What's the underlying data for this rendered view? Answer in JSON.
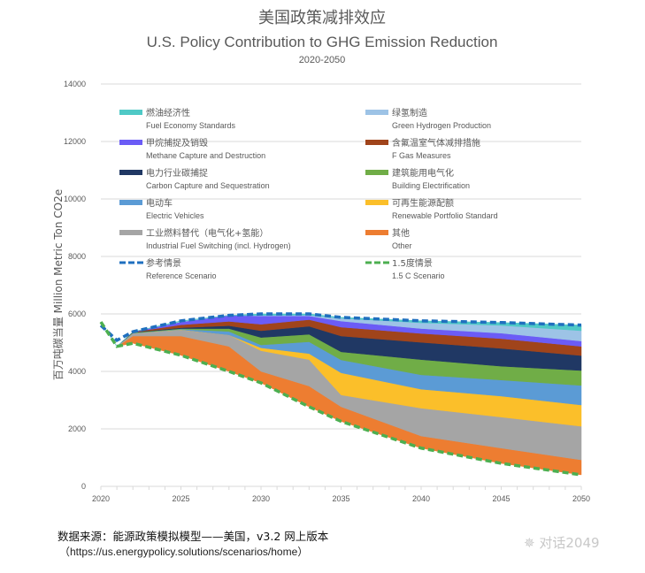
{
  "chart_data": {
    "type": "area",
    "stacked": true,
    "title_cn": "美国政策减排效应",
    "title": "U.S. Policy Contribution to GHG Emission Reduction",
    "subtitle": "2020-2050",
    "ylabel": "百万吨碳当量 Million Metric Ton CO2e",
    "xlabel": "",
    "ylim": [
      0,
      14000
    ],
    "yticks": [
      "0",
      "2000",
      "4000",
      "6000",
      "8000",
      "10000",
      "12000",
      "14000"
    ],
    "xlim": [
      2020,
      2050
    ],
    "xticks": [
      "2020",
      "2025",
      "2030",
      "2035",
      "2040",
      "2045",
      "2050"
    ],
    "grid": true,
    "legend_position": "top (inside plot)",
    "x": [
      2020,
      2021,
      2022,
      2025,
      2028,
      2030,
      2033,
      2035,
      2040,
      2045,
      2050
    ],
    "stack_base": "1.5 C Scenario",
    "series": [
      {
        "name_cn": "其他",
        "name": "Other",
        "color": "#ed7d31",
        "values": [
          0,
          0,
          250,
          670,
          870,
          400,
          720,
          510,
          420,
          530,
          520
        ]
      },
      {
        "name_cn": "工业燃料替代（电气化+氢能）",
        "name": "Industrial Fuel Switching (incl. Hydrogen)",
        "color": "#a5a5a5",
        "values": [
          0,
          0,
          100,
          210,
          400,
          720,
          920,
          410,
          970,
          1080,
          1170
        ]
      },
      {
        "name_cn": "可再生能源配额",
        "name": "Renewable Portfolio Standard",
        "color": "#fbbf2a",
        "values": [
          0,
          0,
          0,
          10,
          0,
          100,
          210,
          770,
          660,
          730,
          740
        ]
      },
      {
        "name_cn": "电动车",
        "name": "Electric Vehicles",
        "color": "#5b9bd5",
        "values": [
          0,
          0,
          0,
          20,
          120,
          100,
          410,
          450,
          500,
          560,
          680
        ]
      },
      {
        "name_cn": "建筑能用电气化",
        "name": "Building Electrification",
        "color": "#70ad47",
        "values": [
          0,
          0,
          20,
          20,
          100,
          260,
          260,
          280,
          530,
          480,
          520
        ]
      },
      {
        "name_cn": "电力行业碳捕捉",
        "name": "Carbon Capture and Sequestration",
        "color": "#203864",
        "values": [
          0,
          0,
          10,
          30,
          100,
          235,
          280,
          550,
          600,
          620,
          520
        ]
      },
      {
        "name_cn": "含氟温室气体减排措施",
        "name": "F Gas Measures",
        "color": "#a0441b",
        "values": [
          0,
          0,
          10,
          100,
          150,
          225,
          230,
          310,
          310,
          340,
          320
        ]
      },
      {
        "name_cn": "甲烷捕捉及销毁",
        "name": "Methane Capture and Destruction",
        "color": "#6b5cf6",
        "values": [
          0,
          0,
          10,
          100,
          210,
          290,
          130,
          210,
          170,
          190,
          185
        ]
      },
      {
        "name_cn": "绿氢制造",
        "name": "Green Hydrogen Production",
        "color": "#9dc3e6",
        "values": [
          0,
          0,
          0,
          20,
          0,
          20,
          30,
          100,
          200,
          270,
          360
        ]
      },
      {
        "name_cn": "燃油经济性",
        "name": "Fuel Economy Standards",
        "color": "#4fc9c6",
        "values": [
          0,
          0,
          0,
          20,
          0,
          50,
          40,
          30,
          70,
          100,
          195
        ]
      }
    ],
    "lines": [
      {
        "name_cn": "参考情景",
        "name": "Reference Scenario",
        "color": "#1f6fbf",
        "style": "dashed",
        "values": [
          5600,
          5080,
          5380,
          5760,
          5950,
          6000,
          6000,
          5880,
          5760,
          5700,
          5610
        ]
      },
      {
        "name_cn": "1.5度情景",
        "name": "1.5 C Scenario",
        "color": "#4caf50",
        "style": "dashed",
        "values": [
          5720,
          4870,
          4980,
          4560,
          4000,
          3600,
          2770,
          2260,
          1330,
          800,
          400
        ]
      }
    ],
    "legend_order_left": [
      "Fuel Economy Standards",
      "Methane Capture and Destruction",
      "Carbon Capture and Sequestration",
      "Electric Vehicles",
      "Industrial Fuel Switching (incl. Hydrogen)",
      "Reference Scenario"
    ],
    "legend_order_right": [
      "Green Hydrogen Production",
      "F Gas Measures",
      "Building Electrification",
      "Renewable Portfolio Standard",
      "Other",
      "1.5 C Scenario"
    ]
  },
  "footer": {
    "source": "数据来源：能源政策模拟模型——美国，v3.2 网上版本",
    "url": "（https://us.energypolicy.solutions/scenarios/home）",
    "watermark": "对话2049"
  }
}
